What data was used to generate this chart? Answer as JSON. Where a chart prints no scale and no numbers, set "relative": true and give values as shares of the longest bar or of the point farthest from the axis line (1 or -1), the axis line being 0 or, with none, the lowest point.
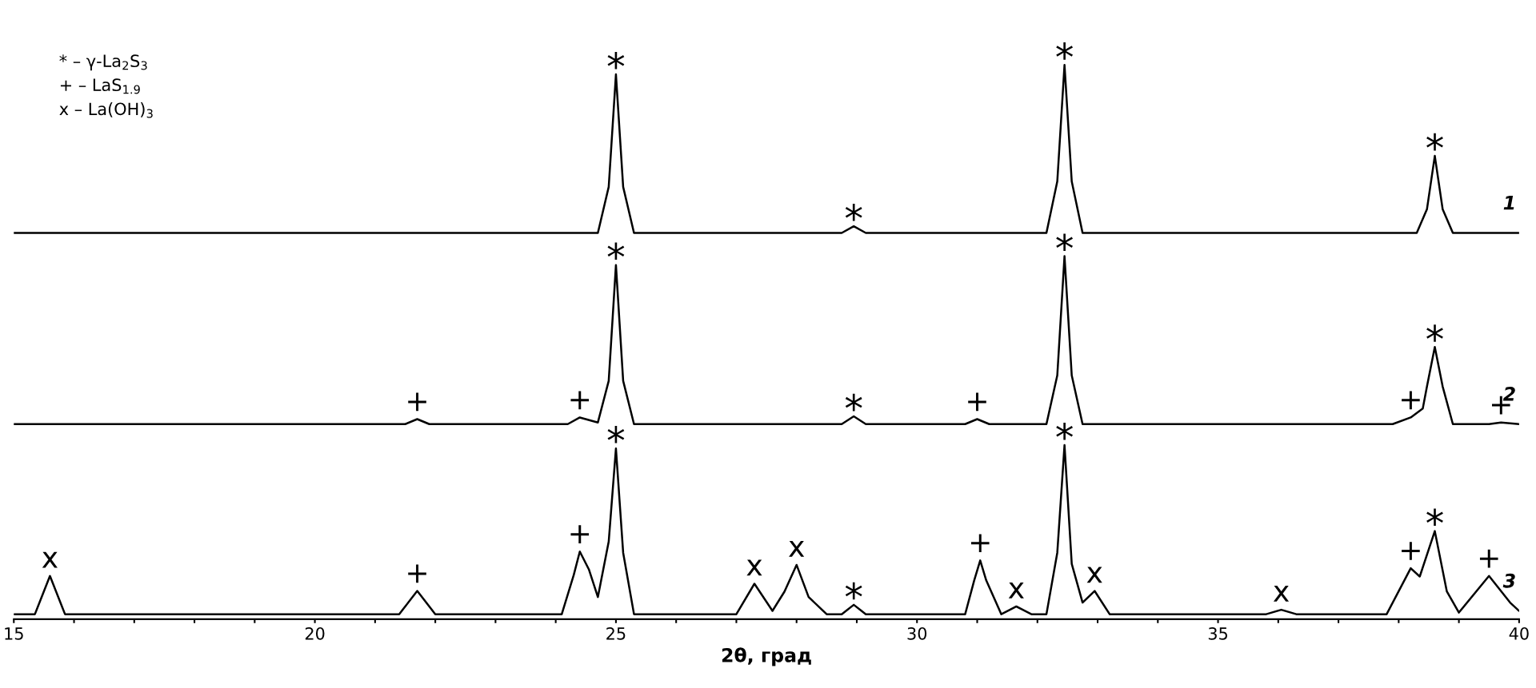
{
  "chart_data": {
    "type": "line",
    "relative": true,
    "xlabel": "2θ, град",
    "xlim": [
      15,
      40
    ],
    "xticks": [
      15,
      {
        "value": 16,
        "label": null
      },
      {
        "value": 17,
        "label": null
      },
      {
        "value": 18,
        "label": null
      },
      {
        "value": 19,
        "label": null
      },
      20,
      {
        "value": 21,
        "label": null
      },
      {
        "value": 22,
        "label": null
      },
      {
        "value": 23,
        "label": null
      },
      {
        "value": 24,
        "label": null
      },
      25,
      {
        "value": 26,
        "label": null
      },
      {
        "value": 27,
        "label": null
      },
      {
        "value": 28,
        "label": null
      },
      {
        "value": 29,
        "label": null
      },
      30,
      {
        "value": 31,
        "label": null
      },
      {
        "value": 32,
        "label": null
      },
      {
        "value": 33,
        "label": null
      },
      {
        "value": 34,
        "label": null
      },
      35,
      {
        "value": 36,
        "label": null
      },
      {
        "value": 37,
        "label": null
      },
      {
        "value": 38,
        "label": null
      },
      {
        "value": 39,
        "label": null
      },
      40
    ],
    "tick_labels": "x",
    "grid": false,
    "marker": "none",
    "line_style": "solid",
    "series": [
      {
        "name": "1",
        "color": "#000000",
        "x": [
          15,
          24.7,
          24.88,
          25.0,
          25.12,
          25.3,
          28.75,
          28.95,
          29.15,
          32.15,
          32.33,
          32.45,
          32.57,
          32.75,
          38.3,
          38.47,
          38.6,
          38.73,
          38.9,
          40
        ],
        "values": [
          0.697,
          0.697,
          0.78,
          0.983,
          0.78,
          0.697,
          0.697,
          0.709,
          0.697,
          0.697,
          0.79,
          1.0,
          0.79,
          0.697,
          0.697,
          0.74,
          0.836,
          0.74,
          0.697,
          0.697
        ]
      },
      {
        "name": "2",
        "color": "#000000",
        "x": [
          15,
          21.5,
          21.7,
          21.9,
          24.2,
          24.4,
          24.7,
          24.88,
          25.0,
          25.12,
          25.3,
          28.75,
          28.95,
          29.15,
          30.8,
          31.0,
          31.2,
          32.15,
          32.33,
          32.45,
          32.57,
          32.75,
          37.9,
          38.2,
          38.4,
          38.47,
          38.6,
          38.73,
          38.9,
          39.5,
          39.7,
          40
        ],
        "values": [
          0.352,
          0.352,
          0.361,
          0.352,
          0.352,
          0.364,
          0.355,
          0.43,
          0.639,
          0.43,
          0.352,
          0.352,
          0.366,
          0.352,
          0.352,
          0.361,
          0.352,
          0.352,
          0.44,
          0.655,
          0.44,
          0.352,
          0.352,
          0.364,
          0.38,
          0.42,
          0.491,
          0.42,
          0.352,
          0.352,
          0.355,
          0.352
        ]
      },
      {
        "name": "3",
        "color": "#000000",
        "x": [
          15,
          15.35,
          15.6,
          15.85,
          21.4,
          21.7,
          22.0,
          24.1,
          24.3,
          24.4,
          24.55,
          24.7,
          24.88,
          25.0,
          25.12,
          25.3,
          27.0,
          27.3,
          27.6,
          27.8,
          28.0,
          28.2,
          28.5,
          28.75,
          28.95,
          29.15,
          30.8,
          30.95,
          31.05,
          31.15,
          31.4,
          31.65,
          31.9,
          32.15,
          32.33,
          32.45,
          32.57,
          32.75,
          32.95,
          33.2,
          35.8,
          36.05,
          36.3,
          37.8,
          38.2,
          38.35,
          38.6,
          38.8,
          39.0,
          39.5,
          39.85,
          40
        ],
        "values": [
          0.009,
          0.009,
          0.078,
          0.009,
          0.009,
          0.051,
          0.009,
          0.009,
          0.08,
          0.122,
          0.09,
          0.04,
          0.14,
          0.308,
          0.12,
          0.009,
          0.009,
          0.064,
          0.015,
          0.05,
          0.098,
          0.04,
          0.009,
          0.009,
          0.026,
          0.009,
          0.009,
          0.07,
          0.106,
          0.07,
          0.009,
          0.023,
          0.009,
          0.009,
          0.12,
          0.314,
          0.1,
          0.03,
          0.051,
          0.009,
          0.009,
          0.017,
          0.009,
          0.009,
          0.092,
          0.077,
          0.159,
          0.05,
          0.012,
          0.078,
          0.03,
          0.015
        ]
      }
    ],
    "annotations": [
      "* – γ-La$_{2}$S$_{3}$",
      "+ – LaS$_{1.9}$",
      "x – La(OH)$_{3}$",
      {
        "text": "*",
        "x": 25.0,
        "y": 0.983
      },
      {
        "text": "*",
        "x": 28.95,
        "y": 0.709
      },
      {
        "text": "*",
        "x": 32.45,
        "y": 1.0
      },
      {
        "text": "*",
        "x": 38.6,
        "y": 0.836
      },
      {
        "text": "+",
        "x": 21.7,
        "y": 0.361
      },
      {
        "text": "+",
        "x": 24.4,
        "y": 0.364
      },
      {
        "text": "*",
        "x": 25.0,
        "y": 0.639
      },
      {
        "text": "*",
        "x": 28.95,
        "y": 0.366
      },
      {
        "text": "+",
        "x": 31.0,
        "y": 0.361
      },
      {
        "text": "*",
        "x": 32.45,
        "y": 0.655
      },
      {
        "text": "+",
        "x": 38.2,
        "y": 0.364
      },
      {
        "text": "*",
        "x": 38.6,
        "y": 0.491
      },
      {
        "text": "+",
        "x": 39.7,
        "y": 0.355
      },
      {
        "text": "x",
        "x": 15.6,
        "y": 0.078
      },
      {
        "text": "+",
        "x": 21.7,
        "y": 0.051
      },
      {
        "text": "+",
        "x": 24.4,
        "y": 0.122
      },
      {
        "text": "*",
        "x": 25.0,
        "y": 0.308
      },
      {
        "text": "x",
        "x": 27.3,
        "y": 0.064
      },
      {
        "text": "x",
        "x": 28.0,
        "y": 0.098
      },
      {
        "text": "*",
        "x": 28.95,
        "y": 0.026
      },
      {
        "text": "+",
        "x": 31.05,
        "y": 0.106
      },
      {
        "text": "x",
        "x": 31.65,
        "y": 0.023
      },
      {
        "text": "*",
        "x": 32.45,
        "y": 0.314
      },
      {
        "text": "x",
        "x": 32.95,
        "y": 0.051
      },
      {
        "text": "x",
        "x": 36.05,
        "y": 0.017
      },
      {
        "text": "+",
        "x": 38.2,
        "y": 0.092
      },
      {
        "text": "*",
        "x": 38.6,
        "y": 0.159
      },
      {
        "text": "+",
        "x": 39.5,
        "y": 0.078
      }
    ]
  }
}
